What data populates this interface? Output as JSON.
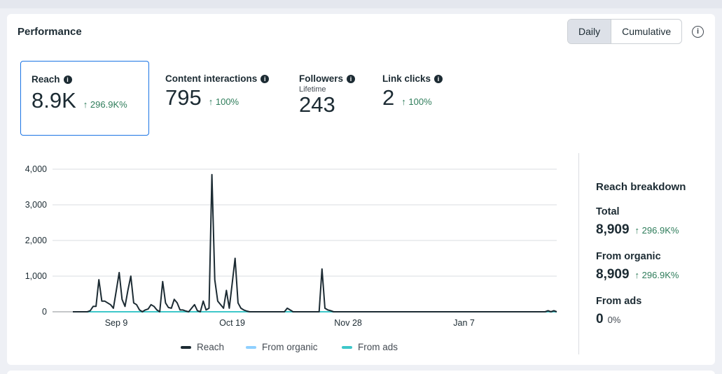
{
  "header": {
    "title": "Performance",
    "toggle": {
      "daily": "Daily",
      "cumulative": "Cumulative"
    },
    "info_icon": "info-circle-icon"
  },
  "metrics": [
    {
      "label": "Reach",
      "value": "8.9K",
      "change": "296.9K%",
      "selected": true
    },
    {
      "label": "Content interactions",
      "value": "795",
      "change": "100%"
    },
    {
      "label": "Followers",
      "sub": "Lifetime",
      "value": "243"
    },
    {
      "label": "Link clicks",
      "value": "2",
      "change": "100%"
    }
  ],
  "breakdown": {
    "title": "Reach breakdown",
    "total": {
      "label": "Total",
      "value": "8,909",
      "change": "296.9K%"
    },
    "organic": {
      "label": "From organic",
      "value": "8,909",
      "change": "296.9K%"
    },
    "ads": {
      "label": "From ads",
      "value": "0",
      "change": "0%"
    }
  },
  "colors": {
    "reach": "#1c2b33",
    "organic": "#8fd0ff",
    "ads": "#3ec7c9",
    "positive": "#2f7d5b",
    "accent": "#1b74e4"
  },
  "chart_data": {
    "type": "line",
    "title": "",
    "xlabel": "",
    "ylabel": "",
    "ylim": [
      0,
      4000
    ],
    "yticks": [
      0,
      1000,
      2000,
      3000,
      4000
    ],
    "ytick_labels": [
      "0",
      "1,000",
      "2,000",
      "3,000",
      "4,000"
    ],
    "xtick_labels": [
      {
        "label": "Sep 9",
        "index": 15
      },
      {
        "label": "Oct 19",
        "index": 55
      },
      {
        "label": "Nov 28",
        "index": 95
      },
      {
        "label": "Jan 7",
        "index": 135
      }
    ],
    "series": [
      {
        "name": "Reach",
        "color": "#1c2b33",
        "values": [
          0,
          0,
          0,
          0,
          0,
          0,
          30,
          150,
          150,
          900,
          300,
          300,
          250,
          200,
          100,
          600,
          1100,
          350,
          150,
          600,
          1000,
          250,
          200,
          50,
          0,
          50,
          80,
          200,
          150,
          50,
          0,
          850,
          250,
          120,
          100,
          350,
          250,
          50,
          50,
          20,
          0,
          100,
          200,
          30,
          0,
          300,
          50,
          100,
          3850,
          900,
          300,
          200,
          100,
          600,
          100,
          800,
          1500,
          250,
          100,
          50,
          20,
          0,
          0,
          0,
          0,
          0,
          0,
          0,
          0,
          0,
          0,
          0,
          0,
          0,
          100,
          50,
          0,
          0,
          0,
          0,
          0,
          0,
          0,
          0,
          0,
          0,
          1200,
          100,
          50,
          30,
          0,
          0,
          0,
          0,
          0,
          0,
          0,
          0,
          0,
          0,
          0,
          0,
          0,
          0,
          0,
          0,
          0,
          0,
          0,
          0,
          0,
          0,
          0,
          0,
          0,
          0,
          0,
          0,
          0,
          0,
          0,
          0,
          0,
          0,
          0,
          0,
          0,
          0,
          0,
          0,
          0,
          0,
          0,
          0,
          0,
          0,
          0,
          0,
          0,
          0,
          0,
          0,
          0,
          0,
          0,
          0,
          0,
          0,
          0,
          0,
          0,
          0,
          0,
          0,
          0,
          0,
          0,
          0,
          0,
          0,
          0,
          0,
          0,
          0,
          30,
          0,
          30,
          0
        ]
      },
      {
        "name": "From organic",
        "color": "#8fd0ff",
        "values": []
      },
      {
        "name": "From ads",
        "color": "#3ec7c9",
        "values": [
          0,
          0
        ]
      }
    ],
    "legend": [
      "Reach",
      "From organic",
      "From ads"
    ],
    "grid": true
  }
}
